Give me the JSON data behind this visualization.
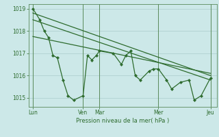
{
  "xlabel": "Pression niveau de la mer( hPa )",
  "bg_color": "#cce8e8",
  "plot_bg_color": "#cce8e8",
  "line_color": "#2d6b2d",
  "grid_color": "#aacccc",
  "ylim": [
    1014.6,
    1019.2
  ],
  "yticks": [
    1015,
    1016,
    1017,
    1018,
    1019
  ],
  "xlim": [
    0,
    300
  ],
  "day_positions": [
    7,
    87,
    113,
    207,
    290
  ],
  "day_labels": [
    "Lun",
    "Ven",
    "Mar",
    "Mer",
    "Jeu"
  ],
  "day_vlines": [
    7,
    87,
    113,
    207,
    290
  ],
  "series_x": [
    7,
    18,
    25,
    32,
    39,
    46,
    55,
    63,
    72,
    87,
    94,
    101,
    108,
    113,
    135,
    148,
    155,
    163,
    170,
    178,
    192,
    199,
    207,
    220,
    228,
    242,
    256,
    264,
    275,
    290
  ],
  "series_y": [
    1019.0,
    1018.5,
    1018.0,
    1017.7,
    1016.9,
    1016.8,
    1015.8,
    1015.1,
    1014.9,
    1015.1,
    1016.9,
    1016.7,
    1016.9,
    1017.1,
    1017.0,
    1016.5,
    1016.9,
    1017.1,
    1016.0,
    1015.8,
    1016.2,
    1016.3,
    1016.3,
    1015.8,
    1015.4,
    1015.7,
    1015.8,
    1014.9,
    1015.1,
    1015.9
  ],
  "trend1_x": [
    7,
    290
  ],
  "trend1_y": [
    1018.8,
    1016.0
  ],
  "trend2_x": [
    7,
    290
  ],
  "trend2_y": [
    1018.5,
    1015.8
  ],
  "trend3_x": [
    7,
    290
  ],
  "trend3_y": [
    1017.75,
    1016.1
  ]
}
